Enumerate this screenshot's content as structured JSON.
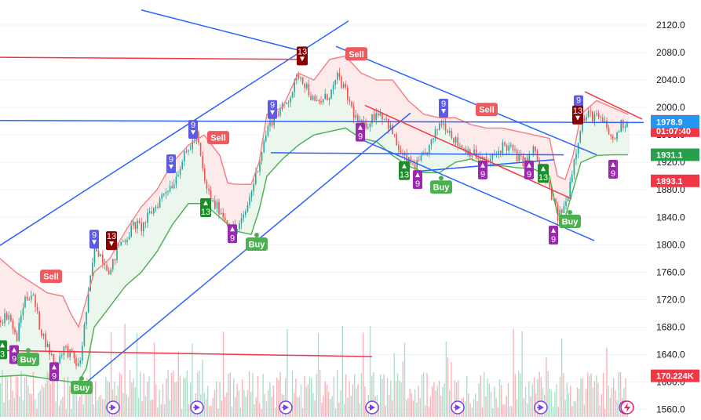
{
  "chart_data": {
    "type": "candlestick",
    "y_axis_ticks": [
      "2120.0",
      "2080.0",
      "2040.0",
      "2000.0",
      "1960.0",
      "1920.0",
      "1880.0",
      "1840.0",
      "1800.0",
      "1760.0",
      "1720.0",
      "1680.0",
      "1640.0",
      "1600.0",
      "1560.0"
    ],
    "ylim": [
      1560,
      2130
    ],
    "price_badges": [
      {
        "label": "1979.8",
        "sub": "01:07:40",
        "value": 1979.8,
        "color": "#f23645"
      },
      {
        "label": "1978.9",
        "value": 1978.9,
        "color": "#2196f3"
      },
      {
        "label": "1931.1",
        "value": 1931.1,
        "color": "#26a04a"
      },
      {
        "label": "1893.1",
        "value": 1893.1,
        "color": "#f23645"
      },
      {
        "label": "170.224K",
        "value": 1609,
        "color": "#f23645"
      }
    ],
    "signals": [
      {
        "text": "Sell",
        "type": "sell",
        "t": 65,
        "price": 1754
      },
      {
        "text": "Sell",
        "type": "sell",
        "t": 278,
        "price": 1956
      },
      {
        "text": "Sell",
        "type": "sell",
        "t": 454,
        "price": 2078
      },
      {
        "text": "Sell",
        "type": "sell",
        "t": 620,
        "price": 1997
      },
      {
        "text": "Buy",
        "type": "buy",
        "t": 36,
        "price": 1633
      },
      {
        "text": "Buy",
        "type": "buy",
        "t": 104,
        "price": 1592
      },
      {
        "text": "Buy",
        "type": "buy",
        "t": 327,
        "price": 1801
      },
      {
        "text": "Buy",
        "type": "buy",
        "t": 562,
        "price": 1884
      },
      {
        "text": "Buy",
        "type": "buy",
        "t": 726,
        "price": 1834
      }
    ],
    "td_counts": [
      {
        "text": "9",
        "dir": "up",
        "color": "#9c27b0",
        "t": 18,
        "price": 1640
      },
      {
        "text": "3",
        "dir": "up",
        "color": "#1b8e2a",
        "t": 3,
        "price": 1647
      },
      {
        "text": "9",
        "dir": "up",
        "color": "#9c27b0",
        "t": 69,
        "price": 1615
      },
      {
        "text": "9",
        "dir": "down",
        "color": "#5b5be8",
        "t": 120,
        "price": 1808
      },
      {
        "text": "13",
        "dir": "down",
        "color": "#8b0000",
        "t": 142,
        "price": 1806
      },
      {
        "text": "9",
        "dir": "down",
        "color": "#5b5be8",
        "t": 218,
        "price": 1918
      },
      {
        "text": "13",
        "dir": "up",
        "color": "#1b8e2a",
        "t": 262,
        "price": 1854
      },
      {
        "text": "9",
        "dir": "down",
        "color": "#5b5be8",
        "t": 246,
        "price": 1968
      },
      {
        "text": "9",
        "dir": "up",
        "color": "#9c27b0",
        "t": 296,
        "price": 1816
      },
      {
        "text": "9",
        "dir": "down",
        "color": "#5b5be8",
        "t": 347,
        "price": 1997
      },
      {
        "text": "13",
        "dir": "down",
        "color": "#8b0000",
        "t": 385,
        "price": 2075
      },
      {
        "text": "9",
        "dir": "up",
        "color": "#9c27b0",
        "t": 459,
        "price": 1964
      },
      {
        "text": "13",
        "dir": "up",
        "color": "#1b8e2a",
        "t": 515,
        "price": 1908
      },
      {
        "text": "9",
        "dir": "up",
        "color": "#9c27b0",
        "t": 532,
        "price": 1895
      },
      {
        "text": "9",
        "dir": "down",
        "color": "#5b5be8",
        "t": 565,
        "price": 1999
      },
      {
        "text": "9",
        "dir": "up",
        "color": "#9c27b0",
        "t": 615,
        "price": 1909
      },
      {
        "text": "9",
        "dir": "up",
        "color": "#9c27b0",
        "t": 674,
        "price": 1909
      },
      {
        "text": "13",
        "dir": "up",
        "color": "#1b8e2a",
        "t": 692,
        "price": 1904
      },
      {
        "text": "9",
        "dir": "up",
        "color": "#9c27b0",
        "t": 705,
        "price": 1814
      },
      {
        "text": "9",
        "dir": "down",
        "color": "#5b5be8",
        "t": 737,
        "price": 2004
      },
      {
        "text": "13",
        "dir": "down",
        "color": "#8b0000",
        "t": 736,
        "price": 1989
      },
      {
        "text": "9",
        "dir": "up",
        "color": "#9c27b0",
        "t": 781,
        "price": 1910
      }
    ],
    "trend_lines": [
      {
        "color": "#2962ff",
        "from": [
          0,
          1799
        ],
        "to": [
          444,
          2126
        ]
      },
      {
        "color": "#2962ff",
        "from": [
          100,
          1590
        ],
        "to": [
          523,
          1992
        ]
      },
      {
        "color": "#2962ff",
        "from": [
          180,
          2142
        ],
        "to": [
          378,
          2084
        ]
      },
      {
        "color": "#2962ff",
        "from": [
          0,
          1981
        ],
        "to": [
          820,
          1978
        ]
      },
      {
        "color": "#2962ff",
        "from": [
          345,
          1934
        ],
        "to": [
          718,
          1931
        ]
      },
      {
        "color": "#2962ff",
        "from": [
          428,
          2089
        ],
        "to": [
          760,
          1931
        ]
      },
      {
        "color": "#2962ff",
        "from": [
          455,
          1956
        ],
        "to": [
          757,
          1806
        ]
      },
      {
        "color": "#2962ff",
        "from": [
          532,
          1907
        ],
        "to": [
          706,
          1924
        ]
      },
      {
        "color": "#f23645",
        "from": [
          0,
          2073
        ],
        "to": [
          380,
          2070
        ]
      },
      {
        "color": "#f23645",
        "from": [
          0,
          1646
        ],
        "to": [
          474,
          1637
        ]
      },
      {
        "color": "#f23645",
        "from": [
          465,
          2003
        ],
        "to": [
          728,
          1867
        ]
      },
      {
        "color": "#f23645",
        "from": [
          745,
          2023
        ],
        "to": [
          818,
          1983
        ]
      }
    ],
    "price_path": [
      [
        0,
        1690
      ],
      [
        10,
        1700
      ],
      [
        20,
        1660
      ],
      [
        30,
        1720
      ],
      [
        40,
        1730
      ],
      [
        50,
        1680
      ],
      [
        60,
        1650
      ],
      [
        70,
        1625
      ],
      [
        80,
        1650
      ],
      [
        90,
        1640
      ],
      [
        100,
        1620
      ],
      [
        110,
        1710
      ],
      [
        120,
        1800
      ],
      [
        130,
        1780
      ],
      [
        140,
        1760
      ],
      [
        150,
        1800
      ],
      [
        160,
        1810
      ],
      [
        170,
        1830
      ],
      [
        180,
        1825
      ],
      [
        190,
        1845
      ],
      [
        200,
        1860
      ],
      [
        210,
        1880
      ],
      [
        220,
        1890
      ],
      [
        230,
        1920
      ],
      [
        240,
        1940
      ],
      [
        250,
        1960
      ],
      [
        260,
        1890
      ],
      [
        270,
        1860
      ],
      [
        280,
        1850
      ],
      [
        290,
        1830
      ],
      [
        300,
        1820
      ],
      [
        310,
        1840
      ],
      [
        320,
        1880
      ],
      [
        330,
        1925
      ],
      [
        340,
        1970
      ],
      [
        350,
        1990
      ],
      [
        360,
        2000
      ],
      [
        370,
        2020
      ],
      [
        380,
        2050
      ],
      [
        390,
        2030
      ],
      [
        400,
        2005
      ],
      [
        410,
        2010
      ],
      [
        420,
        2020
      ],
      [
        430,
        2045
      ],
      [
        440,
        2020
      ],
      [
        450,
        1990
      ],
      [
        460,
        1970
      ],
      [
        470,
        1980
      ],
      [
        480,
        1995
      ],
      [
        490,
        1985
      ],
      [
        500,
        1960
      ],
      [
        510,
        1930
      ],
      [
        520,
        1920
      ],
      [
        530,
        1915
      ],
      [
        540,
        1930
      ],
      [
        550,
        1950
      ],
      [
        560,
        1980
      ],
      [
        570,
        1970
      ],
      [
        580,
        1950
      ],
      [
        590,
        1940
      ],
      [
        600,
        1935
      ],
      [
        610,
        1925
      ],
      [
        620,
        1920
      ],
      [
        630,
        1930
      ],
      [
        640,
        1945
      ],
      [
        650,
        1940
      ],
      [
        660,
        1925
      ],
      [
        670,
        1920
      ],
      [
        680,
        1940
      ],
      [
        690,
        1900
      ],
      [
        700,
        1880
      ],
      [
        710,
        1840
      ],
      [
        720,
        1860
      ],
      [
        730,
        1920
      ],
      [
        740,
        1980
      ],
      [
        750,
        1990
      ],
      [
        760,
        1985
      ],
      [
        770,
        1975
      ],
      [
        780,
        1950
      ],
      [
        790,
        1975
      ],
      [
        800,
        1980
      ]
    ],
    "support_path": [
      [
        0,
        1608
      ],
      [
        30,
        1610
      ],
      [
        60,
        1605
      ],
      [
        90,
        1600
      ],
      [
        100,
        1600
      ],
      [
        110,
        1620
      ],
      [
        120,
        1680
      ],
      [
        140,
        1710
      ],
      [
        160,
        1740
      ],
      [
        180,
        1760
      ],
      [
        200,
        1790
      ],
      [
        220,
        1830
      ],
      [
        240,
        1860
      ],
      [
        260,
        1860
      ],
      [
        280,
        1840
      ],
      [
        300,
        1820
      ],
      [
        320,
        1815
      ],
      [
        330,
        1850
      ],
      [
        340,
        1900
      ],
      [
        360,
        1925
      ],
      [
        380,
        1945
      ],
      [
        400,
        1960
      ],
      [
        420,
        1965
      ],
      [
        440,
        1970
      ],
      [
        460,
        1955
      ],
      [
        480,
        1950
      ],
      [
        500,
        1930
      ],
      [
        520,
        1915
      ],
      [
        540,
        1905
      ],
      [
        560,
        1905
      ],
      [
        580,
        1920
      ],
      [
        600,
        1925
      ],
      [
        620,
        1915
      ],
      [
        640,
        1915
      ],
      [
        660,
        1912
      ],
      [
        680,
        1910
      ],
      [
        700,
        1900
      ],
      [
        710,
        1845
      ],
      [
        720,
        1840
      ],
      [
        730,
        1880
      ],
      [
        740,
        1920
      ],
      [
        760,
        1930
      ],
      [
        780,
        1931
      ],
      [
        800,
        1931
      ]
    ],
    "resistance_path": [
      [
        0,
        1780
      ],
      [
        20,
        1760
      ],
      [
        40,
        1745
      ],
      [
        60,
        1730
      ],
      [
        80,
        1725
      ],
      [
        90,
        1700
      ],
      [
        100,
        1680
      ],
      [
        120,
        1760
      ],
      [
        140,
        1780
      ],
      [
        160,
        1820
      ],
      [
        180,
        1855
      ],
      [
        200,
        1880
      ],
      [
        220,
        1920
      ],
      [
        240,
        1945
      ],
      [
        260,
        1960
      ],
      [
        280,
        1930
      ],
      [
        290,
        1890
      ],
      [
        300,
        1888
      ],
      [
        320,
        1888
      ],
      [
        330,
        1920
      ],
      [
        340,
        1990
      ],
      [
        360,
        2000
      ],
      [
        380,
        2050
      ],
      [
        400,
        2040
      ],
      [
        420,
        2070
      ],
      [
        440,
        2075
      ],
      [
        460,
        2050
      ],
      [
        480,
        2040
      ],
      [
        500,
        2040
      ],
      [
        520,
        2010
      ],
      [
        540,
        1990
      ],
      [
        560,
        1985
      ],
      [
        580,
        1985
      ],
      [
        600,
        1975
      ],
      [
        620,
        1970
      ],
      [
        640,
        1970
      ],
      [
        660,
        1965
      ],
      [
        680,
        1960
      ],
      [
        700,
        1955
      ],
      [
        710,
        1900
      ],
      [
        720,
        1895
      ],
      [
        730,
        1930
      ],
      [
        740,
        1990
      ],
      [
        760,
        2010
      ],
      [
        780,
        2000
      ],
      [
        800,
        1990
      ]
    ],
    "replay_icons": [
      144,
      251,
      364,
      474,
      583,
      689,
      797
    ],
    "end_icons": [
      "flash-icon",
      "replay-icon"
    ]
  }
}
